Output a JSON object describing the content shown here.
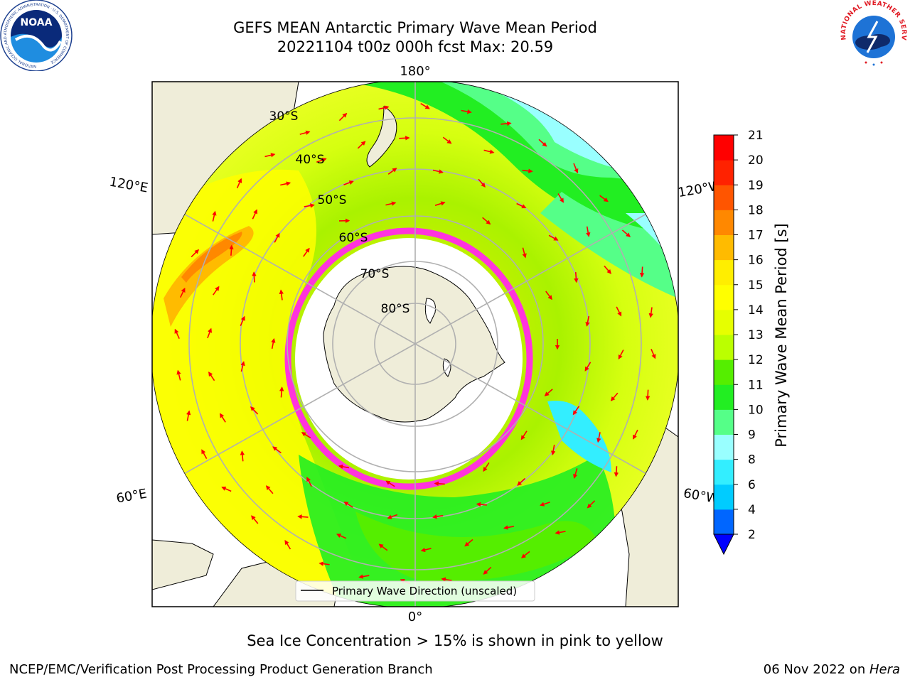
{
  "header": {
    "title_line1": "GEFS MEAN Antarctic Primary Wave Mean Period",
    "title_line2": "20221104 t00z 000h fcst   Max: 20.59"
  },
  "logos": {
    "noaa_text": "NOAA",
    "noaa_ring_text": "NATIONAL OCEANIC AND ATMOSPHERIC ADMINISTRATION · U.S. DEPARTMENT OF COMMERCE",
    "nws_ring_text": "NATIONAL WEATHER SERVICE"
  },
  "map": {
    "projection": "south-polar-stereographic",
    "longitude_labels": {
      "top": "180°",
      "bottom": "0°",
      "upper_left": "120°E",
      "lower_left": "60°E",
      "upper_right": "120°W",
      "lower_right": "60°W"
    },
    "latitude_labels": [
      "30°S",
      "40°S",
      "50°S",
      "60°S",
      "70°S",
      "80°S"
    ],
    "legend_label": "Primary Wave Direction (unscaled)",
    "colors": {
      "land": "#efedd9",
      "ice_edge": "#ff33dd",
      "arrow": "#ff0000",
      "grid": "#b0b0b0"
    }
  },
  "colorbar": {
    "label": "Primary Wave Mean Period [s]",
    "ticks": [
      "2",
      "4",
      "6",
      "8",
      "9",
      "10",
      "11",
      "12",
      "13",
      "14",
      "15",
      "16",
      "17",
      "18",
      "19",
      "20",
      "21"
    ],
    "colors": [
      "#0066ff",
      "#00ccff",
      "#33eeff",
      "#99ffff",
      "#55ff88",
      "#22ee22",
      "#55ee00",
      "#bbff00",
      "#e6ff00",
      "#ffff00",
      "#ffee00",
      "#ffbb00",
      "#ff8800",
      "#ff5500",
      "#ff2200",
      "#ff0000"
    ],
    "extend_color": "#0000ff"
  },
  "note": "Sea Ice Concentration > 15% is shown in pink to yellow",
  "footer": {
    "left": "NCEP/EMC/Verification Post Processing Product Generation Branch",
    "right_date": "06 Nov 2022 on ",
    "right_host": "Hera"
  }
}
